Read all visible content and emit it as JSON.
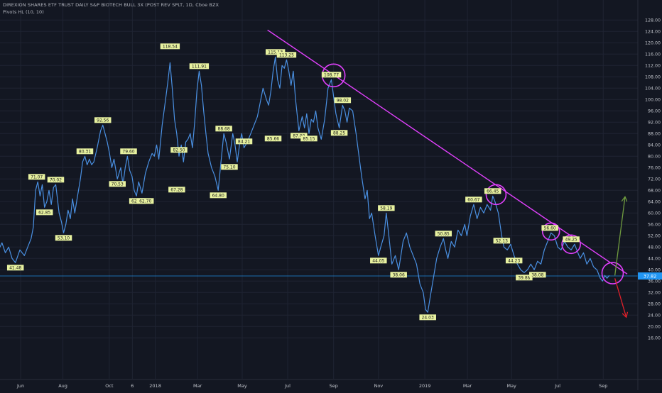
{
  "header": {
    "title": "DIREXION SHARES ETF TRUST DAILY S&P BIOTECH BULL 3X (POST REV SPLT, 1D, Cboe BZX",
    "indicator": "Pivots HL (10, 10)"
  },
  "colors": {
    "background": "#131722",
    "price_line": "#4a90e2",
    "trendline": "#e040fb",
    "circles": "#e040fb",
    "up_arrow": "#6f9b3f",
    "down_arrow": "#e0202a",
    "label_bg": "#e8f2a0",
    "current_price_bg": "#2196f3",
    "axis_text": "#c2c5cc",
    "grid": "#1f2433"
  },
  "chart_data": {
    "type": "line",
    "title": "DIREXION SHARES ETF TRUST DAILY S&P BIOTECH BULL 3X (POST REV SPLT, 1D, Cboe BZX",
    "ylim": [
      14,
      130
    ],
    "y_ticks": [
      "16.00",
      "20.00",
      "24.00",
      "28.00",
      "32.00",
      "36.00",
      "40.00",
      "44.00",
      "48.00",
      "52.00",
      "56.00",
      "60.00",
      "64.00",
      "68.00",
      "72.00",
      "76.00",
      "80.00",
      "84.00",
      "88.00",
      "92.00",
      "96.00",
      "100.00",
      "104.00",
      "108.00",
      "112.00",
      "116.00",
      "120.00",
      "124.00",
      "128.00"
    ],
    "x_ticks": [
      {
        "label": "Jun",
        "t": 0.035
      },
      {
        "label": "Aug",
        "t": 1.92
      },
      {
        "label": "Oct",
        "t": 3.99
      },
      {
        "label": "6",
        "t": 5.02
      },
      {
        "label": "2018",
        "t": 6.04
      },
      {
        "label": "Mar",
        "t": 7.93
      },
      {
        "label": "May",
        "t": 9.92
      },
      {
        "label": "Jul",
        "t": 11.95
      },
      {
        "label": "Sep",
        "t": 14.0
      },
      {
        "label": "Nov",
        "t": 16.0
      },
      {
        "label": "2019",
        "t": 18.07
      },
      {
        "label": "Mar",
        "t": 19.97
      },
      {
        "label": "May",
        "t": 21.94
      },
      {
        "label": "Jul",
        "t": 24.0
      },
      {
        "label": "Sep",
        "t": 26.03
      }
    ],
    "x_note": "t = months since Jun 1 2017",
    "series": [
      {
        "name": "",
        "points": [
          [
            -0.95,
            47
          ],
          [
            -0.8,
            49.5
          ],
          [
            -0.65,
            46
          ],
          [
            -0.5,
            48
          ],
          [
            -0.35,
            44
          ],
          [
            -0.2,
            42.5
          ],
          [
            0,
            47
          ],
          [
            0.2,
            45
          ],
          [
            0.35,
            48
          ],
          [
            0.5,
            51
          ],
          [
            0.6,
            55
          ],
          [
            0.7,
            68
          ],
          [
            0.8,
            71
          ],
          [
            0.9,
            66
          ],
          [
            1.0,
            70
          ],
          [
            1.1,
            62
          ],
          [
            1.2,
            64
          ],
          [
            1.3,
            68
          ],
          [
            1.4,
            63
          ],
          [
            1.5,
            69
          ],
          [
            1.6,
            70
          ],
          [
            1.75,
            60
          ],
          [
            1.85,
            57
          ],
          [
            1.95,
            53
          ],
          [
            2.05,
            56
          ],
          [
            2.15,
            61
          ],
          [
            2.25,
            58
          ],
          [
            2.35,
            65
          ],
          [
            2.45,
            60
          ],
          [
            2.55,
            65
          ],
          [
            2.7,
            72
          ],
          [
            2.8,
            78
          ],
          [
            2.9,
            80
          ],
          [
            3.0,
            77
          ],
          [
            3.1,
            79
          ],
          [
            3.2,
            77
          ],
          [
            3.3,
            78
          ],
          [
            3.45,
            83
          ],
          [
            3.6,
            89
          ],
          [
            3.7,
            91
          ],
          [
            3.8,
            88
          ],
          [
            3.9,
            85
          ],
          [
            4.0,
            81
          ],
          [
            4.1,
            76
          ],
          [
            4.2,
            79
          ],
          [
            4.35,
            72
          ],
          [
            4.5,
            76
          ],
          [
            4.6,
            70
          ],
          [
            4.7,
            76
          ],
          [
            4.8,
            80
          ],
          [
            4.9,
            75
          ],
          [
            5.0,
            73
          ],
          [
            5.1,
            68
          ],
          [
            5.2,
            66
          ],
          [
            5.3,
            71
          ],
          [
            5.45,
            67
          ],
          [
            5.6,
            74
          ],
          [
            5.75,
            78
          ],
          [
            5.9,
            81
          ],
          [
            6.0,
            80
          ],
          [
            6.1,
            84
          ],
          [
            6.2,
            79
          ],
          [
            6.35,
            91
          ],
          [
            6.5,
            100
          ],
          [
            6.6,
            106
          ],
          [
            6.7,
            113
          ],
          [
            6.8,
            104
          ],
          [
            6.9,
            93
          ],
          [
            7.0,
            88
          ],
          [
            7.1,
            80
          ],
          [
            7.2,
            84
          ],
          [
            7.3,
            78
          ],
          [
            7.4,
            85
          ],
          [
            7.5,
            86
          ],
          [
            7.6,
            88
          ],
          [
            7.7,
            83
          ],
          [
            7.8,
            92
          ],
          [
            7.9,
            103
          ],
          [
            8.0,
            110
          ],
          [
            8.1,
            105
          ],
          [
            8.2,
            96
          ],
          [
            8.3,
            88
          ],
          [
            8.4,
            81
          ],
          [
            8.55,
            76
          ],
          [
            8.7,
            73
          ],
          [
            8.85,
            68
          ],
          [
            9.0,
            80
          ],
          [
            9.1,
            88
          ],
          [
            9.2,
            85
          ],
          [
            9.35,
            79
          ],
          [
            9.5,
            88
          ],
          [
            9.6,
            84
          ],
          [
            9.7,
            78
          ],
          [
            9.8,
            84
          ],
          [
            9.9,
            88
          ],
          [
            10.0,
            83
          ],
          [
            10.15,
            85
          ],
          [
            10.3,
            88
          ],
          [
            10.45,
            91
          ],
          [
            10.6,
            94
          ],
          [
            10.7,
            98
          ],
          [
            10.85,
            104
          ],
          [
            11.0,
            100
          ],
          [
            11.1,
            98
          ],
          [
            11.2,
            103
          ],
          [
            11.3,
            110
          ],
          [
            11.4,
            115
          ],
          [
            11.5,
            107
          ],
          [
            11.6,
            104
          ],
          [
            11.7,
            112
          ],
          [
            11.8,
            111
          ],
          [
            11.9,
            114
          ],
          [
            12.0,
            110
          ],
          [
            12.1,
            105
          ],
          [
            12.2,
            110
          ],
          [
            12.3,
            100
          ],
          [
            12.45,
            89
          ],
          [
            12.6,
            94
          ],
          [
            12.7,
            90
          ],
          [
            12.8,
            95
          ],
          [
            12.9,
            88
          ],
          [
            13.0,
            93
          ],
          [
            13.1,
            92
          ],
          [
            13.2,
            96
          ],
          [
            13.3,
            90
          ],
          [
            13.45,
            86
          ],
          [
            13.6,
            93
          ],
          [
            13.75,
            104
          ],
          [
            13.9,
            107
          ],
          [
            14.0,
            101
          ],
          [
            14.1,
            95
          ],
          [
            14.25,
            90
          ],
          [
            14.4,
            98
          ],
          [
            14.5,
            96
          ],
          [
            14.6,
            92
          ],
          [
            14.7,
            97
          ],
          [
            14.85,
            96
          ],
          [
            15.0,
            88
          ],
          [
            15.1,
            82
          ],
          [
            15.25,
            73
          ],
          [
            15.4,
            65
          ],
          [
            15.5,
            68
          ],
          [
            15.6,
            58
          ],
          [
            15.7,
            60
          ],
          [
            15.85,
            52
          ],
          [
            16.0,
            45
          ],
          [
            16.1,
            48
          ],
          [
            16.25,
            52
          ],
          [
            16.35,
            60
          ],
          [
            16.45,
            53
          ],
          [
            16.6,
            42
          ],
          [
            16.75,
            45
          ],
          [
            16.9,
            40
          ],
          [
            17.0,
            45
          ],
          [
            17.1,
            50
          ],
          [
            17.25,
            53
          ],
          [
            17.4,
            48
          ],
          [
            17.55,
            45
          ],
          [
            17.7,
            42
          ],
          [
            17.85,
            35
          ],
          [
            18.0,
            32
          ],
          [
            18.1,
            26
          ],
          [
            18.2,
            25
          ],
          [
            18.3,
            30
          ],
          [
            18.45,
            37
          ],
          [
            18.6,
            44
          ],
          [
            18.75,
            48
          ],
          [
            18.9,
            51
          ],
          [
            19.0,
            47
          ],
          [
            19.1,
            44
          ],
          [
            19.25,
            50
          ],
          [
            19.4,
            48
          ],
          [
            19.55,
            54
          ],
          [
            19.7,
            52
          ],
          [
            19.85,
            56
          ],
          [
            19.95,
            52
          ],
          [
            20.1,
            59
          ],
          [
            20.25,
            63
          ],
          [
            20.4,
            58
          ],
          [
            20.55,
            62
          ],
          [
            20.7,
            60
          ],
          [
            20.85,
            63
          ],
          [
            21.0,
            61
          ],
          [
            21.1,
            66
          ],
          [
            21.2,
            64
          ],
          [
            21.35,
            60
          ],
          [
            21.5,
            52
          ],
          [
            21.6,
            48
          ],
          [
            21.75,
            47
          ],
          [
            21.9,
            49
          ],
          [
            22.05,
            45
          ],
          [
            22.2,
            42
          ],
          [
            22.35,
            40
          ],
          [
            22.5,
            39
          ],
          [
            22.65,
            40
          ],
          [
            22.8,
            42
          ],
          [
            22.95,
            40
          ],
          [
            23.1,
            43
          ],
          [
            23.25,
            42
          ],
          [
            23.4,
            47
          ],
          [
            23.55,
            50
          ],
          [
            23.7,
            53
          ],
          [
            23.85,
            52
          ],
          [
            24.0,
            48
          ],
          [
            24.15,
            47
          ],
          [
            24.3,
            50
          ],
          [
            24.45,
            48
          ],
          [
            24.6,
            47
          ],
          [
            24.75,
            49
          ],
          [
            24.9,
            46
          ],
          [
            25.0,
            44
          ],
          [
            25.15,
            46
          ],
          [
            25.3,
            42
          ],
          [
            25.45,
            44
          ],
          [
            25.6,
            41
          ],
          [
            25.75,
            40
          ],
          [
            25.9,
            37
          ],
          [
            26.0,
            36
          ],
          [
            26.1,
            38
          ],
          [
            26.2,
            37
          ],
          [
            26.3,
            38
          ]
        ]
      }
    ],
    "pivot_labels": [
      {
        "text": "41.48",
        "t": -0.2,
        "v": 42.5,
        "pos": "below"
      },
      {
        "text": "71.07",
        "t": 0.75,
        "v": 71,
        "pos": "above"
      },
      {
        "text": "62.85",
        "t": 1.1,
        "v": 62,
        "pos": "below"
      },
      {
        "text": "70.02",
        "t": 1.6,
        "v": 70,
        "pos": "above"
      },
      {
        "text": "53.10",
        "t": 1.95,
        "v": 53,
        "pos": "below"
      },
      {
        "text": "80.31",
        "t": 2.9,
        "v": 80,
        "pos": "above"
      },
      {
        "text": "92.56",
        "t": 3.7,
        "v": 91,
        "pos": "above"
      },
      {
        "text": "70.53",
        "t": 4.35,
        "v": 72,
        "pos": "below"
      },
      {
        "text": "79.60",
        "t": 4.85,
        "v": 80,
        "pos": "above"
      },
      {
        "text": "62.70",
        "t": 5.25,
        "v": 66,
        "pos": "below"
      },
      {
        "text": "62.70",
        "t": 5.6,
        "v": 66,
        "pos": "below"
      },
      {
        "text": "118.54",
        "t": 6.7,
        "v": 117,
        "pos": "above"
      },
      {
        "text": "82.50",
        "t": 7.1,
        "v": 84,
        "pos": "below"
      },
      {
        "text": "67.28",
        "t": 7.0,
        "v": 70,
        "pos": "below"
      },
      {
        "text": "111.91",
        "t": 8.0,
        "v": 110,
        "pos": "above"
      },
      {
        "text": "64.80",
        "t": 8.85,
        "v": 68,
        "pos": "below"
      },
      {
        "text": "88.68",
        "t": 9.1,
        "v": 88,
        "pos": "above"
      },
      {
        "text": "75.10",
        "t": 9.35,
        "v": 78,
        "pos": "below"
      },
      {
        "text": "84.21",
        "t": 10.0,
        "v": 87,
        "pos": "below"
      },
      {
        "text": "115.13",
        "t": 11.4,
        "v": 115,
        "pos": "above"
      },
      {
        "text": "113.25",
        "t": 11.9,
        "v": 114,
        "pos": "above"
      },
      {
        "text": "85.66",
        "t": 11.3,
        "v": 88,
        "pos": "below"
      },
      {
        "text": "87.00",
        "t": 12.45,
        "v": 89,
        "pos": "below"
      },
      {
        "text": "85.15",
        "t": 12.9,
        "v": 88,
        "pos": "below"
      },
      {
        "text": "108.77",
        "t": 13.9,
        "v": 107,
        "pos": "above"
      },
      {
        "text": "98.02",
        "t": 14.4,
        "v": 98,
        "pos": "above"
      },
      {
        "text": "88.25",
        "t": 14.25,
        "v": 90,
        "pos": "below"
      },
      {
        "text": "44.05",
        "t": 16.0,
        "v": 45,
        "pos": "below"
      },
      {
        "text": "58.19",
        "t": 16.35,
        "v": 60,
        "pos": "above"
      },
      {
        "text": "38.06",
        "t": 16.9,
        "v": 40,
        "pos": "below"
      },
      {
        "text": "24.03",
        "t": 18.2,
        "v": 25,
        "pos": "below"
      },
      {
        "text": "50.85",
        "t": 18.9,
        "v": 51,
        "pos": "above"
      },
      {
        "text": "60.67",
        "t": 20.25,
        "v": 63,
        "pos": "above"
      },
      {
        "text": "66.45",
        "t": 21.1,
        "v": 66,
        "pos": "above"
      },
      {
        "text": "52.13",
        "t": 21.5,
        "v": 52,
        "pos": "below"
      },
      {
        "text": "44.23",
        "t": 22.05,
        "v": 45,
        "pos": "below"
      },
      {
        "text": "39.88",
        "t": 22.5,
        "v": 39,
        "pos": "below"
      },
      {
        "text": "38.08",
        "t": 23.1,
        "v": 40,
        "pos": "below"
      },
      {
        "text": "56.60",
        "t": 23.65,
        "v": 53,
        "pos": "above"
      },
      {
        "text": "49.25",
        "t": 24.6,
        "v": 49,
        "pos": "above"
      }
    ],
    "trendline": {
      "from": [
        11.05,
        124.5
      ],
      "to": [
        27.1,
        38.5
      ]
    },
    "circles": [
      {
        "t": 14.0,
        "v": 108.5,
        "r": 16
      },
      {
        "t": 21.25,
        "v": 66.5,
        "r": 14
      },
      {
        "t": 23.7,
        "v": 53.5,
        "r": 12
      },
      {
        "t": 24.6,
        "v": 49.0,
        "r": 13
      },
      {
        "t": 26.45,
        "v": 38.8,
        "r": 15
      }
    ],
    "arrows": [
      {
        "name": "up",
        "from": [
          26.55,
          38.0
        ],
        "to": [
          27.0,
          65.5
        ]
      },
      {
        "name": "down",
        "from": [
          26.55,
          37.0
        ],
        "to": [
          27.05,
          23.5
        ]
      }
    ],
    "current_price": {
      "label": "37.82",
      "value": 37.82
    }
  }
}
